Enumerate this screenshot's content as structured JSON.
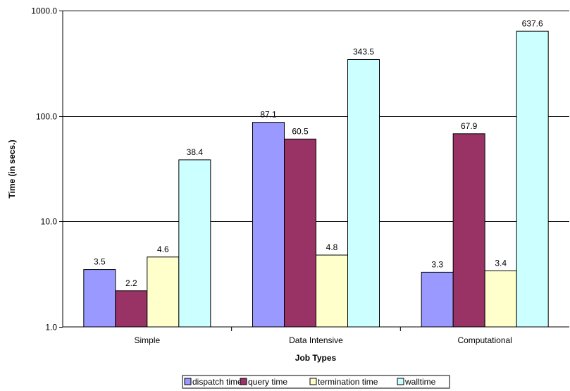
{
  "chart_data": {
    "type": "bar",
    "title": "",
    "xlabel": "Job Types",
    "ylabel": "Time (in secs.)",
    "yscale": "log",
    "ylim": [
      1,
      1000
    ],
    "yticks": [
      "1.0",
      "10.0",
      "100.0",
      "1000.0"
    ],
    "grid": "horizontal major",
    "legend_position": "bottom",
    "categories": [
      "Simple",
      "Data Intensive",
      "Computational"
    ],
    "series": [
      {
        "name": "dispatch time",
        "color": "#9999ff",
        "values": [
          3.5,
          87.1,
          3.3
        ],
        "labels": [
          "3.5",
          "87.1",
          "3.3"
        ]
      },
      {
        "name": "query time",
        "color": "#993366",
        "values": [
          2.2,
          60.5,
          67.9
        ],
        "labels": [
          "2.2",
          "60.5",
          "67.9"
        ]
      },
      {
        "name": "termination time",
        "color": "#ffffcc",
        "values": [
          4.6,
          4.8,
          3.4
        ],
        "labels": [
          "4.6",
          "4.8",
          "3.4"
        ]
      },
      {
        "name": "walltime",
        "color": "#ccffff",
        "values": [
          38.4,
          343.5,
          637.6
        ],
        "labels": [
          "38.4",
          "343.5",
          "637.6"
        ]
      }
    ]
  }
}
